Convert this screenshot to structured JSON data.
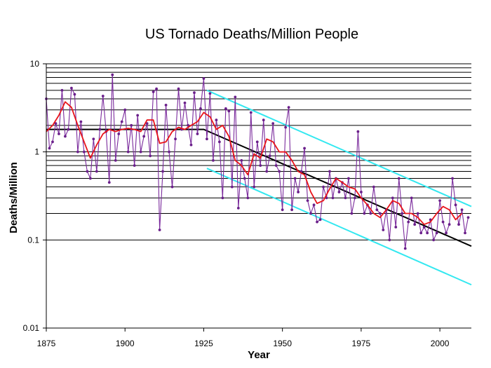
{
  "chart_data": {
    "type": "line",
    "title": "US Tornado Deaths/Million People",
    "xlabel": "Year",
    "ylabel": "Deaths/Million",
    "x_range": [
      1875,
      2010
    ],
    "ylim": [
      0.01,
      10
    ],
    "y_scale": "log",
    "x_ticks": [
      "1875",
      "1900",
      "1925",
      "1950",
      "1975",
      "2000"
    ],
    "y_ticks": [
      "0.01",
      "0.1",
      "1",
      "10"
    ],
    "grid": "major and minor horizontal lines in the upper decades",
    "colors": {
      "annual": "#7a2a9c",
      "annual_markers": "#6a1f8a",
      "smoothed": "#e8141a",
      "trend": "#000000",
      "band": "#33e8f0"
    },
    "series": [
      {
        "role": "annual",
        "x": [
          1875,
          1876,
          1877,
          1878,
          1879,
          1880,
          1881,
          1882,
          1883,
          1884,
          1885,
          1886,
          1887,
          1888,
          1889,
          1890,
          1891,
          1892,
          1893,
          1894,
          1895,
          1896,
          1897,
          1898,
          1899,
          1900,
          1901,
          1902,
          1903,
          1904,
          1905,
          1906,
          1907,
          1908,
          1909,
          1910,
          1911,
          1912,
          1913,
          1914,
          1915,
          1916,
          1917,
          1918,
          1919,
          1920,
          1921,
          1922,
          1923,
          1924,
          1925,
          1926,
          1927,
          1928,
          1929,
          1930,
          1931,
          1932,
          1933,
          1934,
          1935,
          1936,
          1937,
          1938,
          1939,
          1940,
          1941,
          1942,
          1943,
          1944,
          1945,
          1946,
          1947,
          1948,
          1949,
          1950,
          1951,
          1952,
          1953,
          1954,
          1955,
          1956,
          1957,
          1958,
          1959,
          1960,
          1961,
          1962,
          1963,
          1964,
          1965,
          1966,
          1967,
          1968,
          1969,
          1970,
          1971,
          1972,
          1973,
          1974,
          1975,
          1976,
          1977,
          1978,
          1979,
          1980,
          1981,
          1982,
          1983,
          1984,
          1985,
          1986,
          1987,
          1988,
          1989,
          1990,
          1991,
          1992,
          1993,
          1994,
          1995,
          1996,
          1997,
          1998,
          1999,
          2000,
          2001,
          2002,
          2003,
          2004,
          2005,
          2006,
          2007,
          2008,
          2009
        ],
        "y": [
          4.0,
          1.1,
          1.3,
          2.1,
          1.6,
          5.0,
          1.5,
          1.8,
          5.3,
          4.5,
          1.0,
          2.2,
          1.0,
          0.6,
          0.5,
          1.4,
          0.6,
          1.8,
          4.3,
          1.7,
          0.45,
          7.5,
          0.8,
          1.6,
          2.2,
          3.0,
          1.0,
          2.0,
          0.7,
          2.6,
          1.0,
          1.5,
          2.1,
          0.9,
          4.8,
          5.2,
          0.13,
          0.6,
          3.4,
          1.0,
          0.4,
          1.4,
          5.2,
          1.8,
          3.6,
          2.0,
          1.2,
          4.7,
          1.6,
          3.1,
          6.8,
          1.4,
          4.6,
          0.8,
          2.3,
          1.3,
          0.3,
          3.1,
          2.9,
          0.4,
          4.2,
          0.23,
          0.8,
          0.5,
          0.3,
          2.8,
          0.4,
          1.3,
          0.7,
          2.3,
          0.6,
          0.9,
          2.1,
          0.7,
          0.6,
          0.22,
          1.9,
          3.2,
          0.22,
          0.5,
          0.35,
          0.6,
          1.1,
          0.28,
          0.2,
          0.25,
          0.16,
          0.17,
          0.4,
          0.3,
          0.6,
          0.3,
          0.5,
          0.35,
          0.45,
          0.3,
          0.5,
          0.2,
          0.3,
          1.7,
          0.35,
          0.2,
          0.25,
          0.2,
          0.4,
          0.22,
          0.2,
          0.13,
          0.22,
          0.1,
          0.3,
          0.14,
          0.5,
          0.2,
          0.08,
          0.16,
          0.3,
          0.15,
          0.2,
          0.12,
          0.14,
          0.12,
          0.17,
          0.1,
          0.12,
          0.28,
          0.16,
          0.12,
          0.15,
          0.5,
          0.25,
          0.15,
          0.22,
          0.12,
          0.18
        ]
      },
      {
        "role": "smoothed",
        "x": [
          1875,
          1877,
          1879,
          1881,
          1883,
          1885,
          1887,
          1889,
          1891,
          1893,
          1895,
          1897,
          1899,
          1901,
          1903,
          1905,
          1907,
          1909,
          1911,
          1913,
          1915,
          1917,
          1919,
          1921,
          1923,
          1925,
          1927,
          1929,
          1931,
          1933,
          1935,
          1937,
          1939,
          1941,
          1943,
          1945,
          1947,
          1949,
          1951,
          1953,
          1955,
          1957,
          1959,
          1961,
          1963,
          1965,
          1967,
          1969,
          1971,
          1973,
          1975,
          1977,
          1979,
          1981,
          1983,
          1985,
          1987,
          1989,
          1991,
          1993,
          1995,
          1997,
          1999,
          2001,
          2003,
          2005,
          2007
        ],
        "y": [
          1.7,
          2.0,
          2.6,
          3.7,
          3.2,
          2.0,
          1.3,
          0.85,
          1.2,
          1.6,
          1.8,
          1.7,
          1.8,
          1.85,
          1.8,
          1.7,
          2.3,
          2.3,
          1.25,
          1.3,
          1.7,
          1.9,
          1.8,
          2.0,
          2.2,
          2.8,
          2.5,
          1.8,
          2.0,
          1.5,
          0.8,
          0.7,
          0.55,
          0.95,
          0.85,
          1.4,
          1.3,
          1.0,
          1.0,
          0.8,
          0.6,
          0.55,
          0.35,
          0.26,
          0.28,
          0.38,
          0.5,
          0.45,
          0.4,
          0.38,
          0.3,
          0.25,
          0.2,
          0.18,
          0.22,
          0.28,
          0.26,
          0.2,
          0.2,
          0.18,
          0.15,
          0.16,
          0.2,
          0.24,
          0.22,
          0.17,
          0.2
        ]
      },
      {
        "role": "trend",
        "x": [
          1875,
          1925,
          2010
        ],
        "y": [
          1.8,
          1.8,
          0.085
        ]
      },
      {
        "role": "band-upper",
        "x": [
          1926,
          2010
        ],
        "y": [
          5.0,
          0.24
        ]
      },
      {
        "role": "band-lower",
        "x": [
          1926,
          2010
        ],
        "y": [
          0.65,
          0.031
        ]
      }
    ]
  }
}
